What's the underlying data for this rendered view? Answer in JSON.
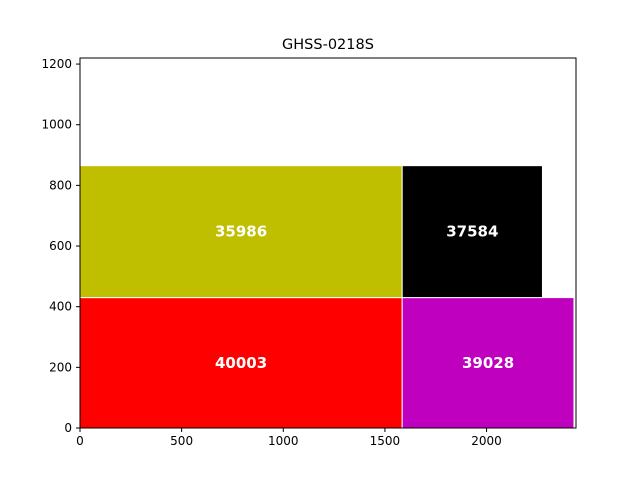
{
  "chart_data": {
    "type": "bar",
    "title": "GHSS-0218S",
    "xlabel": "",
    "ylabel": "",
    "xlim": [
      0,
      2440
    ],
    "ylim": [
      0,
      1220
    ],
    "x_ticks": [
      0,
      500,
      1000,
      1500,
      2000
    ],
    "y_ticks": [
      0,
      200,
      400,
      600,
      800,
      1000,
      1200
    ],
    "grid": false,
    "rectangles": [
      {
        "label": "40003",
        "x": 0,
        "y": 0,
        "width": 1585,
        "height": 430,
        "color": "#ff0000"
      },
      {
        "label": "39028",
        "x": 1585,
        "y": 0,
        "width": 845,
        "height": 430,
        "color": "#bf00bf"
      },
      {
        "label": "35986",
        "x": 0,
        "y": 430,
        "width": 1585,
        "height": 435,
        "color": "#bfbf00"
      },
      {
        "label": "37584",
        "x": 1585,
        "y": 430,
        "width": 690,
        "height": 435,
        "color": "#000000"
      }
    ]
  }
}
